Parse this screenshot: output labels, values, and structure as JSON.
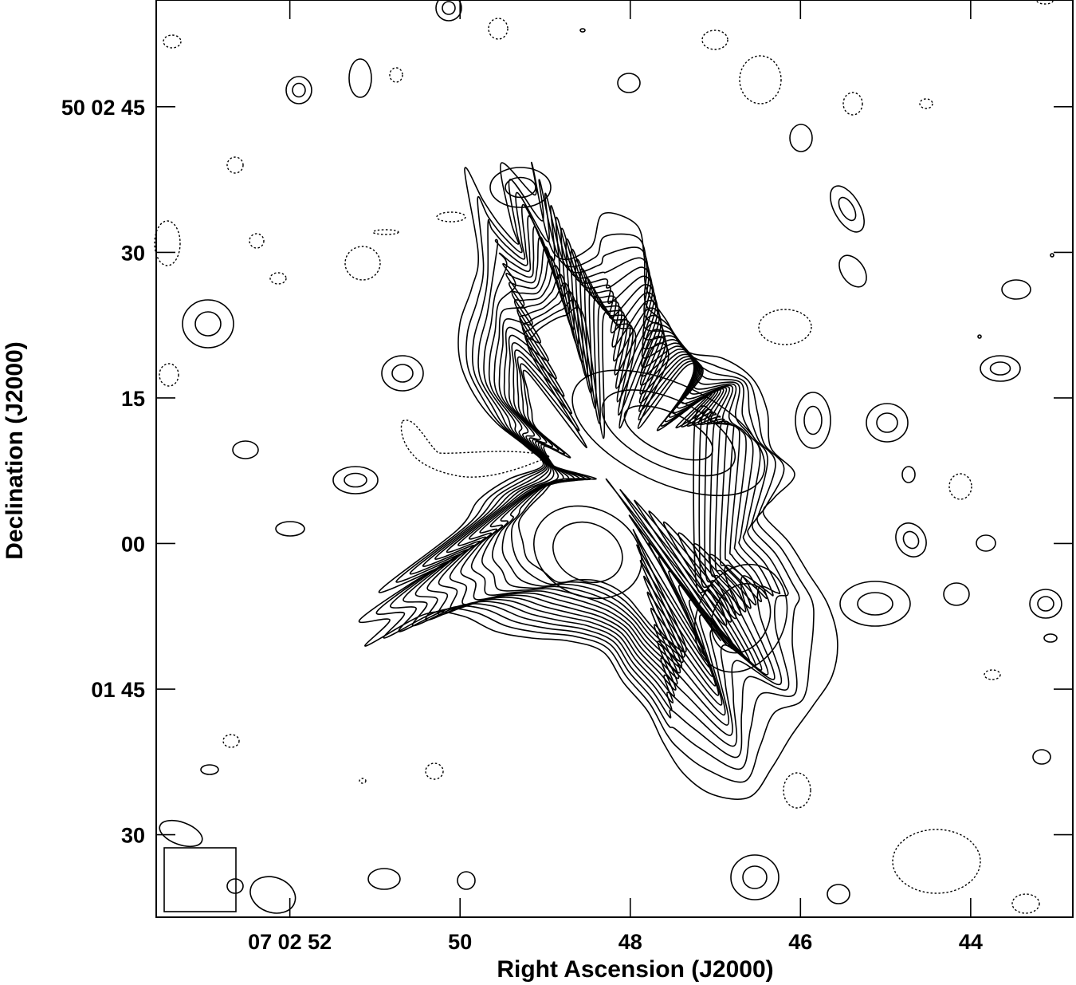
{
  "chart_data": {
    "type": "contour",
    "xlabel": "Right Ascension (J2000)",
    "ylabel": "Declination (J2000)",
    "x_ticks": [
      {
        "ra_s": 52,
        "label": "07 02 52"
      },
      {
        "ra_s": 50,
        "label": "50"
      },
      {
        "ra_s": 48,
        "label": "48"
      },
      {
        "ra_s": 46,
        "label": "46"
      },
      {
        "ra_s": 44,
        "label": "44"
      }
    ],
    "y_ticks": [
      {
        "dec_s": 165,
        "label": "50 02 45"
      },
      {
        "dec_s": 150,
        "label": "30"
      },
      {
        "dec_s": 135,
        "label": "15"
      },
      {
        "dec_s": 120,
        "label": "00"
      },
      {
        "dec_s": 105,
        "label": "01 45"
      },
      {
        "dec_s": 90,
        "label": "30"
      }
    ],
    "xlim_ra_s": [
      53.57,
      42.8
    ],
    "ylim_dec_s": [
      81.5,
      176
    ],
    "positive_contours": "solid",
    "negative_contours": "dashed",
    "source": {
      "peaks": [
        {
          "ra_s": 47.55,
          "dec_s": 131.4
        },
        {
          "ra_s": 48.5,
          "dec_s": 119.1
        },
        {
          "ra_s": 46.7,
          "dec_s": 112.3
        }
      ],
      "contour_levels": 15
    },
    "beam": {
      "ra_s": 52.2,
      "dec_s": 83.8
    }
  }
}
